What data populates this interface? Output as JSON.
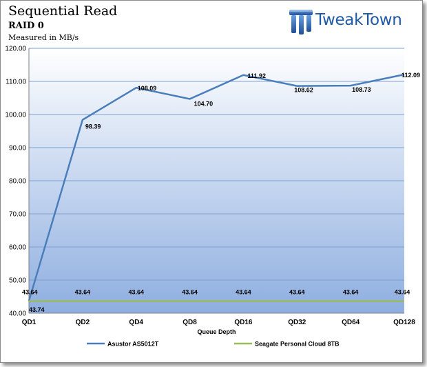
{
  "header": {
    "title": "Sequential Read",
    "subtitle": "RAID 0",
    "unit": "Measured in MB/s"
  },
  "logo": {
    "text": "TweakTown",
    "color": "#1f5aa6"
  },
  "chart_data": {
    "type": "line",
    "title": "Sequential Read",
    "subtitle": "RAID 0",
    "ylabel": "Measured in MB/s",
    "xlabel": "Queue Depth",
    "ylim": [
      40,
      120
    ],
    "ytick_step": 10,
    "ytick_format": "0.00",
    "grid": true,
    "legend_position": "bottom",
    "categories": [
      "QD1",
      "QD2",
      "QD4",
      "QD8",
      "QD16",
      "QD32",
      "QD64",
      "QD128"
    ],
    "series": [
      {
        "name": "Asustor AS5012T",
        "color": "#4a7ebb",
        "values": [
          43.74,
          98.39,
          108.09,
          104.7,
          111.92,
          108.62,
          108.73,
          112.09
        ],
        "labels": [
          "43.74",
          "98.39",
          "108.09",
          "104.70",
          "111.92",
          "108.62",
          "108.73",
          "112.09"
        ]
      },
      {
        "name": "Seagate Personal Cloud 8TB",
        "color": "#9bbb59",
        "values": [
          43.64,
          43.64,
          43.64,
          43.64,
          43.64,
          43.64,
          43.64,
          43.64
        ],
        "labels": [
          "43.64",
          "43.64",
          "43.64",
          "43.64",
          "43.64",
          "43.64",
          "43.64",
          "43.64"
        ]
      }
    ]
  }
}
